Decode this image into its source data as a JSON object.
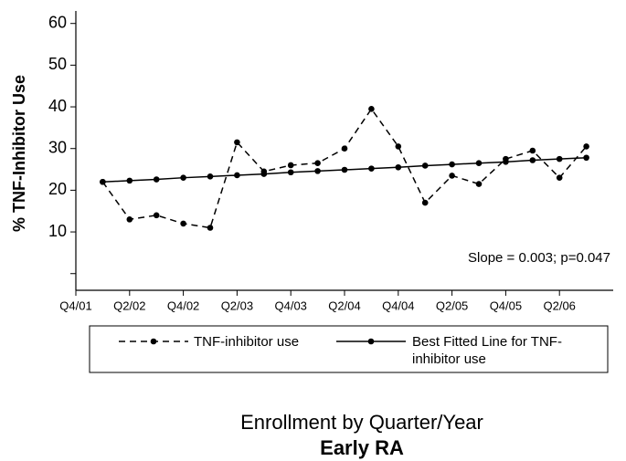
{
  "chart_data": {
    "type": "line",
    "y_label": "% TNF-Inhibitor Use",
    "x_label": "Enrollment by Quarter/Year",
    "subtitle": "Early RA",
    "annotation": "Slope = 0.003; p=0.047",
    "x": [
      1,
      2,
      3,
      4,
      5,
      6,
      7,
      8,
      9,
      10,
      11,
      12,
      13,
      14,
      15,
      16,
      17,
      18,
      19
    ],
    "series": [
      {
        "name": "TNF-inhibitor use",
        "color": "#000000",
        "dash": true,
        "values": [
          22,
          13,
          14,
          12,
          11,
          31.5,
          24.5,
          26,
          26.5,
          30,
          39.5,
          30.5,
          17,
          23.5,
          21.5,
          27.5,
          29.5,
          23,
          30.5
        ]
      },
      {
        "name": "Best Fitted Line for TNF-inhibitor use",
        "color": "#000000",
        "dash": false,
        "values": [
          22.0,
          22.3,
          22.6,
          23.0,
          23.3,
          23.6,
          23.9,
          24.3,
          24.6,
          24.9,
          25.2,
          25.5,
          25.9,
          26.2,
          26.5,
          26.8,
          27.2,
          27.5,
          27.8
        ]
      }
    ],
    "xlim": [
      0,
      20
    ],
    "xticks": [
      {
        "value": 0,
        "label": "Q4/01"
      },
      {
        "value": 2,
        "label": "Q2/02"
      },
      {
        "value": 4,
        "label": "Q4/02"
      },
      {
        "value": 6,
        "label": "Q2/03"
      },
      {
        "value": 8,
        "label": "Q4/03"
      },
      {
        "value": 10,
        "label": "Q2/04"
      },
      {
        "value": 12,
        "label": "Q4/04"
      },
      {
        "value": 14,
        "label": "Q2/05"
      },
      {
        "value": 16,
        "label": "Q4/05"
      },
      {
        "value": 18,
        "label": "Q2/06"
      }
    ],
    "ylim": [
      -4,
      63
    ],
    "yticks": [
      10,
      20,
      30,
      40,
      50,
      60
    ],
    "yticks_unlabeled": [
      0
    ],
    "grid": false,
    "legend": "bottom"
  }
}
